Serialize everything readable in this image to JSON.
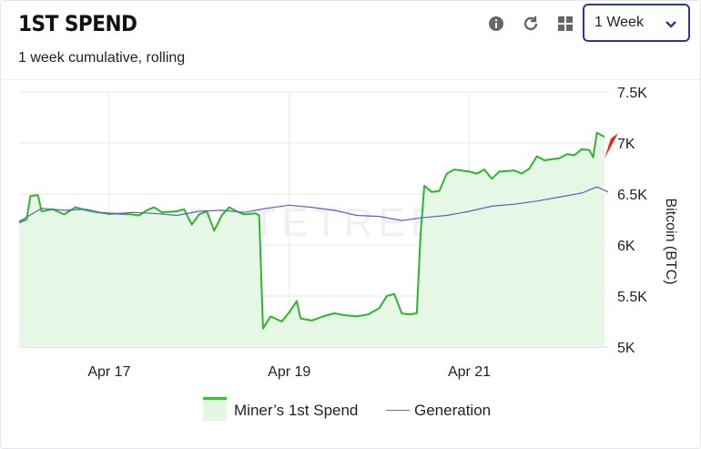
{
  "header": {
    "title": "1ST SPEND",
    "subtitle": "1 week cumulative, rolling",
    "period_select": "1 Week"
  },
  "toolbar": {
    "icons": [
      "info-icon",
      "refresh-icon",
      "grid-icon",
      "chevron-down-icon"
    ]
  },
  "watermark": "BYTETREE",
  "colors": {
    "spend_line": "#2db52d",
    "spend_fill": "#e6f7e6",
    "generation_line": "#5a5fc8",
    "grid": "#e6e8ec",
    "select_border": "#2d3a8c",
    "arrow": "#e8251c"
  },
  "chart_data": {
    "type": "line",
    "x_unit": "day",
    "xlim": [
      "2024-04-16 00:00",
      "2024-04-22 13:00"
    ],
    "x_ticks": [
      {
        "at": "2024-04-17",
        "label": "Apr 17"
      },
      {
        "at": "2024-04-19",
        "label": "Apr 19"
      },
      {
        "at": "2024-04-21",
        "label": "Apr 21"
      }
    ],
    "ylim": [
      5000,
      7500
    ],
    "y_ticks": [
      {
        "value": 5000,
        "label": "5K"
      },
      {
        "value": 5500,
        "label": "5.5K"
      },
      {
        "value": 6000,
        "label": "6K"
      },
      {
        "value": 6500,
        "label": "6.5K"
      },
      {
        "value": 7000,
        "label": "7K"
      },
      {
        "value": 7500,
        "label": "7.5K"
      }
    ],
    "ylabel": "Bitcoin (BTC)",
    "legend_position": "bottom",
    "series": [
      {
        "name": "Miner’s 1st Spend",
        "fill": true,
        "points": [
          [
            "2024-04-16 00:00",
            6220
          ],
          [
            "2024-04-16 02:00",
            6250
          ],
          [
            "2024-04-16 03:00",
            6480
          ],
          [
            "2024-04-16 05:00",
            6490
          ],
          [
            "2024-04-16 06:00",
            6330
          ],
          [
            "2024-04-16 09:00",
            6350
          ],
          [
            "2024-04-16 12:00",
            6300
          ],
          [
            "2024-04-16 15:00",
            6370
          ],
          [
            "2024-04-16 18:00",
            6340
          ],
          [
            "2024-04-16 21:00",
            6320
          ],
          [
            "2024-04-17 00:00",
            6310
          ],
          [
            "2024-04-17 06:00",
            6300
          ],
          [
            "2024-04-17 08:00",
            6290
          ],
          [
            "2024-04-17 10:00",
            6340
          ],
          [
            "2024-04-17 12:00",
            6370
          ],
          [
            "2024-04-17 14:00",
            6320
          ],
          [
            "2024-04-17 18:00",
            6330
          ],
          [
            "2024-04-17 20:00",
            6350
          ],
          [
            "2024-04-17 22:00",
            6200
          ],
          [
            "2024-04-18 00:00",
            6300
          ],
          [
            "2024-04-18 02:00",
            6330
          ],
          [
            "2024-04-18 04:00",
            6140
          ],
          [
            "2024-04-18 06:00",
            6290
          ],
          [
            "2024-04-18 08:00",
            6370
          ],
          [
            "2024-04-18 10:00",
            6330
          ],
          [
            "2024-04-18 12:00",
            6300
          ],
          [
            "2024-04-18 15:00",
            6310
          ],
          [
            "2024-04-18 16:00",
            6290
          ],
          [
            "2024-04-18 17:00",
            5180
          ],
          [
            "2024-04-18 19:00",
            5300
          ],
          [
            "2024-04-18 22:00",
            5250
          ],
          [
            "2024-04-19 00:00",
            5340
          ],
          [
            "2024-04-19 02:00",
            5450
          ],
          [
            "2024-04-19 03:00",
            5280
          ],
          [
            "2024-04-19 06:00",
            5260
          ],
          [
            "2024-04-19 09:00",
            5300
          ],
          [
            "2024-04-19 12:00",
            5330
          ],
          [
            "2024-04-19 15:00",
            5310
          ],
          [
            "2024-04-19 18:00",
            5300
          ],
          [
            "2024-04-19 21:00",
            5320
          ],
          [
            "2024-04-20 00:00",
            5380
          ],
          [
            "2024-04-20 02:00",
            5500
          ],
          [
            "2024-04-20 04:00",
            5520
          ],
          [
            "2024-04-20 06:00",
            5330
          ],
          [
            "2024-04-20 08:00",
            5320
          ],
          [
            "2024-04-20 10:00",
            5330
          ],
          [
            "2024-04-20 11:00",
            6100
          ],
          [
            "2024-04-20 12:00",
            6580
          ],
          [
            "2024-04-20 14:00",
            6520
          ],
          [
            "2024-04-20 16:00",
            6530
          ],
          [
            "2024-04-20 18:00",
            6700
          ],
          [
            "2024-04-20 20:00",
            6740
          ],
          [
            "2024-04-21 00:00",
            6720
          ],
          [
            "2024-04-21 02:00",
            6700
          ],
          [
            "2024-04-21 04:00",
            6740
          ],
          [
            "2024-04-21 06:00",
            6650
          ],
          [
            "2024-04-21 08:00",
            6720
          ],
          [
            "2024-04-21 12:00",
            6730
          ],
          [
            "2024-04-21 14:00",
            6700
          ],
          [
            "2024-04-21 16:00",
            6750
          ],
          [
            "2024-04-21 18:00",
            6870
          ],
          [
            "2024-04-21 20:00",
            6830
          ],
          [
            "2024-04-21 22:00",
            6840
          ],
          [
            "2024-04-22 00:00",
            6850
          ],
          [
            "2024-04-22 02:00",
            6890
          ],
          [
            "2024-04-22 04:00",
            6880
          ],
          [
            "2024-04-22 06:00",
            6940
          ],
          [
            "2024-04-22 08:00",
            6930
          ],
          [
            "2024-04-22 09:00",
            6860
          ],
          [
            "2024-04-22 10:00",
            7100
          ],
          [
            "2024-04-22 12:00",
            7060
          ]
        ]
      },
      {
        "name": "Generation",
        "fill": false,
        "points": [
          [
            "2024-04-16 00:00",
            6230
          ],
          [
            "2024-04-16 06:00",
            6360
          ],
          [
            "2024-04-16 12:00",
            6340
          ],
          [
            "2024-04-16 18:00",
            6350
          ],
          [
            "2024-04-17 00:00",
            6300
          ],
          [
            "2024-04-17 06:00",
            6320
          ],
          [
            "2024-04-17 12:00",
            6310
          ],
          [
            "2024-04-17 18:00",
            6290
          ],
          [
            "2024-04-18 00:00",
            6330
          ],
          [
            "2024-04-18 06:00",
            6340
          ],
          [
            "2024-04-18 12:00",
            6320
          ],
          [
            "2024-04-18 18:00",
            6360
          ],
          [
            "2024-04-19 00:00",
            6390
          ],
          [
            "2024-04-19 06:00",
            6370
          ],
          [
            "2024-04-19 12:00",
            6340
          ],
          [
            "2024-04-19 18:00",
            6290
          ],
          [
            "2024-04-20 00:00",
            6280
          ],
          [
            "2024-04-20 06:00",
            6240
          ],
          [
            "2024-04-20 12:00",
            6270
          ],
          [
            "2024-04-20 18:00",
            6290
          ],
          [
            "2024-04-21 00:00",
            6330
          ],
          [
            "2024-04-21 06:00",
            6380
          ],
          [
            "2024-04-21 12:00",
            6400
          ],
          [
            "2024-04-21 18:00",
            6430
          ],
          [
            "2024-04-22 00:00",
            6470
          ],
          [
            "2024-04-22 06:00",
            6510
          ],
          [
            "2024-04-22 10:00",
            6570
          ],
          [
            "2024-04-22 13:00",
            6520
          ]
        ]
      }
    ]
  }
}
